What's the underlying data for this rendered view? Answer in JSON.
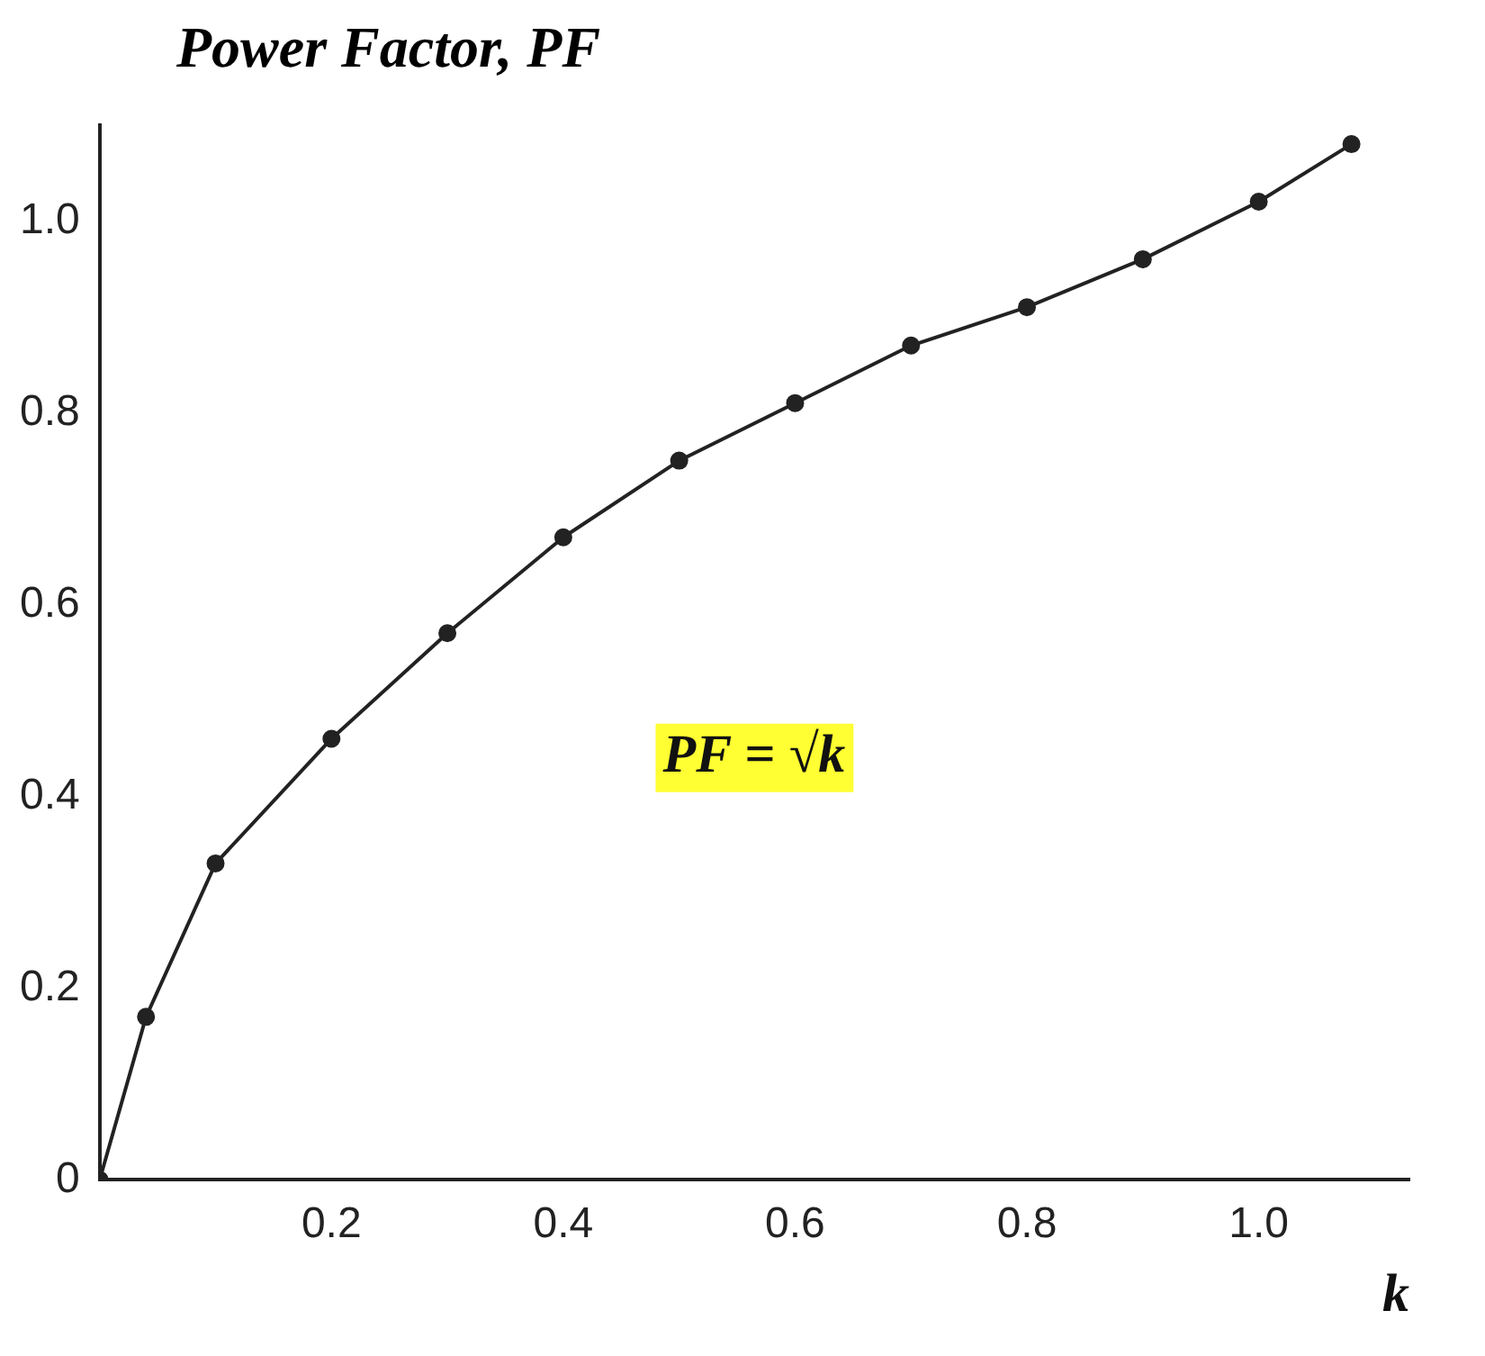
{
  "chart_data": {
    "type": "line",
    "ylabel": "Power Factor, PF",
    "xlabel": "k",
    "xlim": [
      0,
      1.13
    ],
    "ylim": [
      0,
      1.1
    ],
    "xticks": [
      {
        "value": 0.2,
        "label": "0.2"
      },
      {
        "value": 0.4,
        "label": "0.4"
      },
      {
        "value": 0.6,
        "label": "0.6"
      },
      {
        "value": 0.8,
        "label": "0.8"
      },
      {
        "value": 1.0,
        "label": "1.0"
      }
    ],
    "yticks": [
      {
        "value": 0,
        "label": "0"
      },
      {
        "value": 0.2,
        "label": "0.2"
      },
      {
        "value": 0.4,
        "label": "0.4"
      },
      {
        "value": 0.6,
        "label": "0.6"
      },
      {
        "value": 0.8,
        "label": "0.8"
      },
      {
        "value": 1.0,
        "label": "1.0"
      }
    ],
    "series": [
      {
        "color": "#222222",
        "x": [
          0,
          0.04,
          0.1,
          0.2,
          0.3,
          0.4,
          0.5,
          0.6,
          0.7,
          0.8,
          0.9,
          1.0,
          1.08
        ],
        "values": [
          0,
          0.17,
          0.33,
          0.46,
          0.57,
          0.67,
          0.75,
          0.81,
          0.87,
          0.91,
          0.96,
          1.02,
          1.08
        ]
      }
    ],
    "marker": "circle",
    "line_style": "solid",
    "grid": false,
    "legend": false,
    "annotations": [
      "PF = √k"
    ]
  }
}
